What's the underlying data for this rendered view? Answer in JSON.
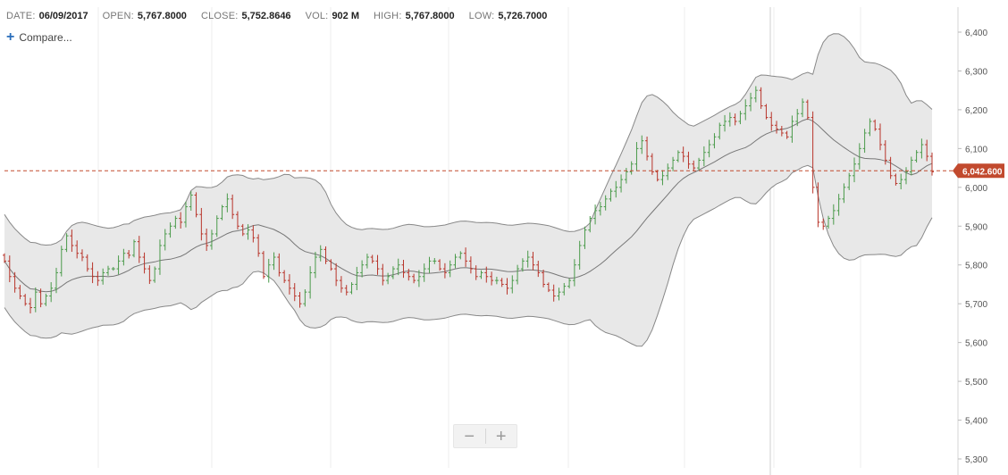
{
  "header": {
    "date_label": "DATE:",
    "date_value": "06/09/2017",
    "open_label": "OPEN:",
    "open_value": "5,767.8000",
    "close_label": "CLOSE:",
    "close_value": "5,752.8646",
    "vol_label": "VOL:",
    "vol_value": "902 M",
    "high_label": "HIGH:",
    "high_value": "5,767.8000",
    "low_label": "LOW:",
    "low_value": "5,726.7000"
  },
  "compare": {
    "label": "Compare..."
  },
  "zoom": {
    "minus": "−",
    "plus": "+"
  },
  "price_marker": {
    "label": "6,042.600",
    "value": 6042.6
  },
  "colors": {
    "up": "#4a9a4a",
    "down": "#b8342a",
    "band_fill": "#e8e8e8",
    "band_line": "#888888",
    "marker": "#c24a2e",
    "grid": "#ececec"
  },
  "chart_data": {
    "type": "ohlc",
    "y_ticks": [
      "6,400",
      "6,300",
      "6,200",
      "6,100",
      "6,000",
      "5,900",
      "5,800",
      "5,700",
      "5,600",
      "5,500",
      "5,400",
      "5,300"
    ],
    "y_tick_values": [
      6400,
      6300,
      6200,
      6100,
      6000,
      5900,
      5800,
      5700,
      5600,
      5500,
      5400,
      5300
    ],
    "ylim": [
      5300,
      6400
    ],
    "overlay": "Bollinger Bands",
    "grid": "vertical",
    "closes": [
      5810,
      5770,
      5740,
      5720,
      5700,
      5690,
      5730,
      5700,
      5720,
      5740,
      5780,
      5840,
      5875,
      5850,
      5830,
      5820,
      5790,
      5770,
      5760,
      5780,
      5790,
      5790,
      5810,
      5830,
      5825,
      5860,
      5820,
      5790,
      5760,
      5790,
      5850,
      5880,
      5900,
      5920,
      5910,
      5950,
      5980,
      5930,
      5880,
      5850,
      5880,
      5920,
      5950,
      5970,
      5930,
      5900,
      5880,
      5890,
      5870,
      5830,
      5770,
      5800,
      5820,
      5780,
      5760,
      5740,
      5720,
      5700,
      5730,
      5780,
      5820,
      5840,
      5810,
      5790,
      5760,
      5740,
      5730,
      5750,
      5780,
      5800,
      5820,
      5810,
      5790,
      5760,
      5770,
      5790,
      5800,
      5780,
      5770,
      5760,
      5770,
      5790,
      5810,
      5810,
      5790,
      5780,
      5800,
      5820,
      5830,
      5810,
      5790,
      5770,
      5780,
      5770,
      5760,
      5760,
      5750,
      5740,
      5760,
      5790,
      5810,
      5820,
      5800,
      5780,
      5750,
      5735,
      5720,
      5730,
      5745,
      5760,
      5800,
      5850,
      5890,
      5920,
      5940,
      5950,
      5970,
      5990,
      6000,
      6020,
      6040,
      6060,
      6100,
      6120,
      6080,
      6040,
      6020,
      6030,
      6050,
      6070,
      6090,
      6080,
      6060,
      6050,
      6070,
      6090,
      6110,
      6130,
      6160,
      6170,
      6180,
      6170,
      6190,
      6210,
      6230,
      6250,
      6210,
      6180,
      6160,
      6150,
      6140,
      6130,
      6170,
      6190,
      6220,
      6180,
      6000,
      5910,
      5900,
      5920,
      5940,
      5970,
      6000,
      6030,
      6060,
      6100,
      6140,
      6170,
      6150,
      6110,
      6070,
      6030,
      6010,
      6020,
      6040,
      6070,
      6090,
      6110,
      6080,
      6040
    ]
  }
}
